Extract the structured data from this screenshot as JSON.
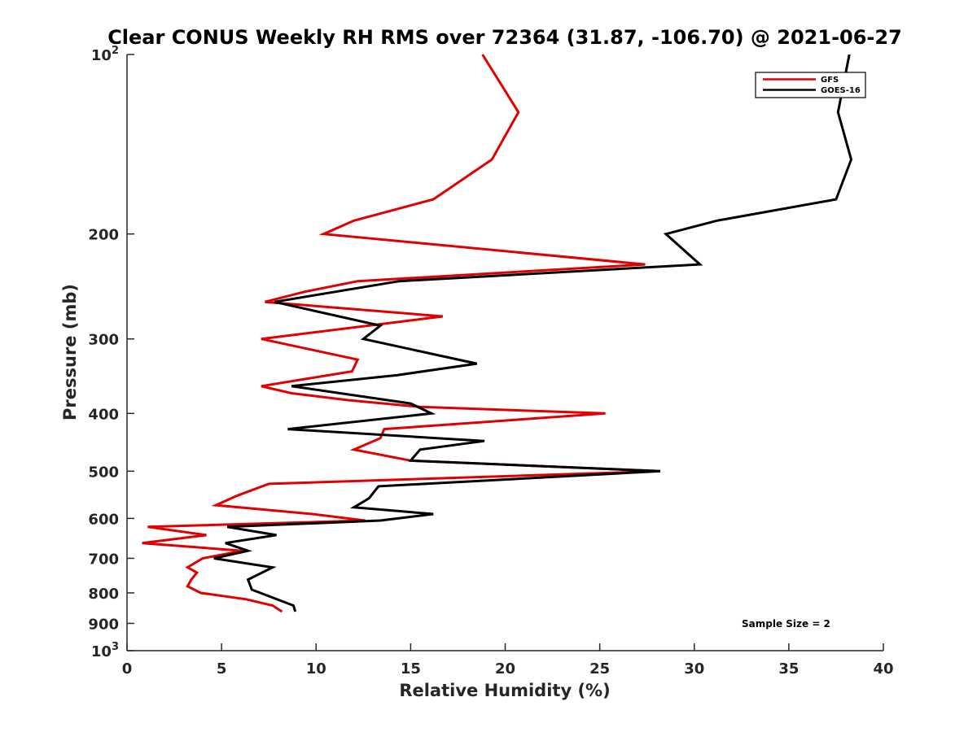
{
  "chart_data": {
    "type": "line",
    "title": "Clear CONUS Weekly RH RMS over 72364 (31.87, -106.70) @ 2021-06-27",
    "xlabel": "Relative Humidity (%)",
    "ylabel": "Pressure (mb)",
    "xlim": [
      0,
      40
    ],
    "ylim": [
      100,
      1000
    ],
    "y_scale": "log",
    "y_reversed": true,
    "grid": false,
    "legend_position": "top-right",
    "x_ticks": [
      0,
      5,
      10,
      15,
      20,
      25,
      30,
      35,
      40
    ],
    "x_tick_labels": [
      "0",
      "5",
      "10",
      "15",
      "20",
      "25",
      "30",
      "35",
      "40"
    ],
    "y_ticks": [
      100,
      200,
      300,
      400,
      500,
      600,
      700,
      800,
      900,
      1000
    ],
    "y_tick_labels": [
      {
        "base": "10",
        "exp": "2"
      },
      {
        "base": "200",
        "exp": ""
      },
      {
        "base": "300",
        "exp": ""
      },
      {
        "base": "400",
        "exp": ""
      },
      {
        "base": "500",
        "exp": ""
      },
      {
        "base": "600",
        "exp": ""
      },
      {
        "base": "700",
        "exp": ""
      },
      {
        "base": "800",
        "exp": ""
      },
      {
        "base": "900",
        "exp": ""
      },
      {
        "base": "10",
        "exp": "3"
      }
    ],
    "annotation": "Sample Size = 2",
    "series": [
      {
        "name": "GFS",
        "color": "#e00000",
        "points": [
          {
            "rh": 18.8,
            "p": 100
          },
          {
            "rh": 20.7,
            "p": 125
          },
          {
            "rh": 19.3,
            "p": 150
          },
          {
            "rh": 16.2,
            "p": 175
          },
          {
            "rh": 12.0,
            "p": 190
          },
          {
            "rh": 10.4,
            "p": 200
          },
          {
            "rh": 27.4,
            "p": 225
          },
          {
            "rh": 12.2,
            "p": 240
          },
          {
            "rh": 9.4,
            "p": 250
          },
          {
            "rh": 7.3,
            "p": 260
          },
          {
            "rh": 16.7,
            "p": 275
          },
          {
            "rh": 7.1,
            "p": 300
          },
          {
            "rh": 12.2,
            "p": 325
          },
          {
            "rh": 11.9,
            "p": 340
          },
          {
            "rh": 7.1,
            "p": 360
          },
          {
            "rh": 8.7,
            "p": 370
          },
          {
            "rh": 11.7,
            "p": 380
          },
          {
            "rh": 15.5,
            "p": 390
          },
          {
            "rh": 25.3,
            "p": 400
          },
          {
            "rh": 13.6,
            "p": 425
          },
          {
            "rh": 13.4,
            "p": 440
          },
          {
            "rh": 12.0,
            "p": 460
          },
          {
            "rh": 15.0,
            "p": 480
          },
          {
            "rh": 28.2,
            "p": 500
          },
          {
            "rh": 7.5,
            "p": 525
          },
          {
            "rh": 5.8,
            "p": 550
          },
          {
            "rh": 4.7,
            "p": 570
          },
          {
            "rh": 9.8,
            "p": 590
          },
          {
            "rh": 12.6,
            "p": 605
          },
          {
            "rh": 1.1,
            "p": 620
          },
          {
            "rh": 4.2,
            "p": 640
          },
          {
            "rh": 0.8,
            "p": 660
          },
          {
            "rh": 6.1,
            "p": 680
          },
          {
            "rh": 4.0,
            "p": 700
          },
          {
            "rh": 3.2,
            "p": 725
          },
          {
            "rh": 3.7,
            "p": 740
          },
          {
            "rh": 3.4,
            "p": 760
          },
          {
            "rh": 3.2,
            "p": 780
          },
          {
            "rh": 3.9,
            "p": 800
          },
          {
            "rh": 6.3,
            "p": 820
          },
          {
            "rh": 7.7,
            "p": 840
          },
          {
            "rh": 8.2,
            "p": 860
          }
        ]
      },
      {
        "name": "GOES-16",
        "color": "#000000",
        "points": [
          {
            "rh": 38.2,
            "p": 100
          },
          {
            "rh": 37.6,
            "p": 125
          },
          {
            "rh": 38.3,
            "p": 150
          },
          {
            "rh": 37.5,
            "p": 175
          },
          {
            "rh": 31.2,
            "p": 190
          },
          {
            "rh": 28.5,
            "p": 200
          },
          {
            "rh": 30.3,
            "p": 225
          },
          {
            "rh": 14.4,
            "p": 240
          },
          {
            "rh": 7.8,
            "p": 260
          },
          {
            "rh": 13.4,
            "p": 285
          },
          {
            "rh": 12.5,
            "p": 300
          },
          {
            "rh": 18.5,
            "p": 330
          },
          {
            "rh": 14.3,
            "p": 345
          },
          {
            "rh": 8.7,
            "p": 360
          },
          {
            "rh": 15.0,
            "p": 385
          },
          {
            "rh": 16.1,
            "p": 400
          },
          {
            "rh": 8.5,
            "p": 425
          },
          {
            "rh": 18.9,
            "p": 445
          },
          {
            "rh": 15.5,
            "p": 460
          },
          {
            "rh": 15.0,
            "p": 480
          },
          {
            "rh": 28.2,
            "p": 500
          },
          {
            "rh": 13.3,
            "p": 530
          },
          {
            "rh": 12.8,
            "p": 555
          },
          {
            "rh": 12.0,
            "p": 575
          },
          {
            "rh": 16.2,
            "p": 590
          },
          {
            "rh": 13.4,
            "p": 605
          },
          {
            "rh": 5.3,
            "p": 620
          },
          {
            "rh": 7.9,
            "p": 640
          },
          {
            "rh": 5.2,
            "p": 660
          },
          {
            "rh": 6.4,
            "p": 680
          },
          {
            "rh": 4.6,
            "p": 700
          },
          {
            "rh": 7.7,
            "p": 725
          },
          {
            "rh": 6.4,
            "p": 760
          },
          {
            "rh": 6.6,
            "p": 790
          },
          {
            "rh": 8.8,
            "p": 840
          },
          {
            "rh": 8.9,
            "p": 860
          }
        ]
      }
    ]
  }
}
